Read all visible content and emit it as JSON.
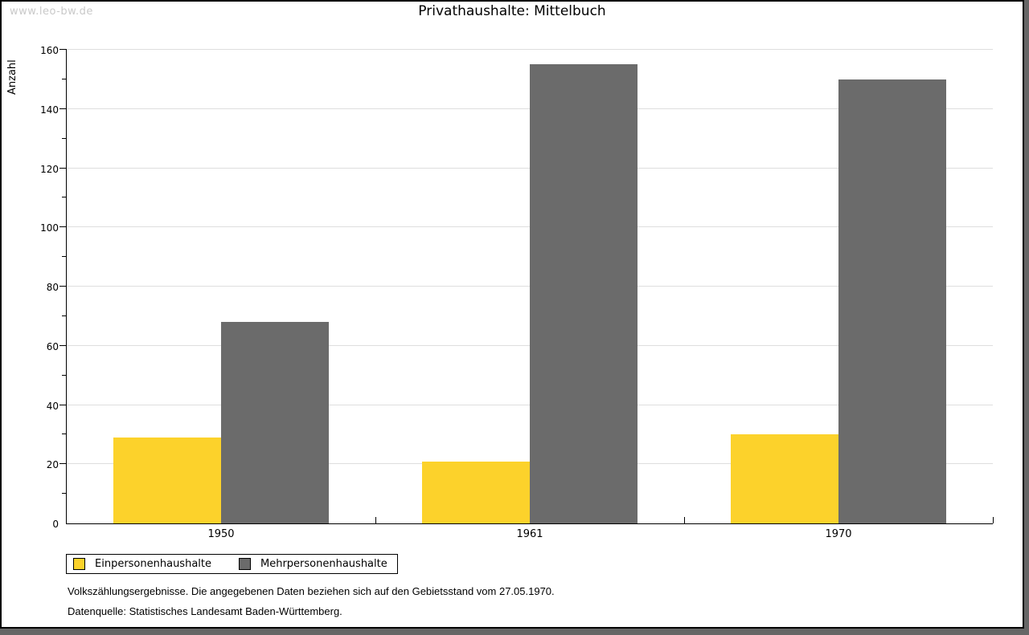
{
  "watermark": "www.leo-bw.de",
  "chart_data": {
    "type": "bar",
    "title": "Privathaushalte: Mittelbuch",
    "ylabel": "Anzahl",
    "xlabel": "",
    "categories": [
      "1950",
      "1961",
      "1970"
    ],
    "series": [
      {
        "name": "Einpersonenhaushalte",
        "color": "#fcd22b",
        "values": [
          29,
          21,
          30
        ]
      },
      {
        "name": "Mehrpersonenhaushalte",
        "color": "#6b6b6b",
        "values": [
          68,
          155,
          150
        ]
      }
    ],
    "ylim": [
      0,
      160
    ],
    "yticks": [
      0,
      20,
      40,
      60,
      80,
      100,
      120,
      140,
      160
    ],
    "ytick_minor_step": 10,
    "grid": true,
    "legend_position": "bottom-left",
    "colors": {
      "gridline": "#dedede",
      "axis": "#000000",
      "bar_yellow": "#fcd22b",
      "bar_gray": "#6b6b6b",
      "frame_shadow": "#666666",
      "watermark": "#c9c9c9"
    }
  },
  "footnotes": [
    "Volkszählungsergebnisse. Die angegebenen Daten beziehen sich auf den Gebietsstand vom 27.05.1970.",
    "Datenquelle: Statistisches Landesamt Baden-Württemberg."
  ]
}
